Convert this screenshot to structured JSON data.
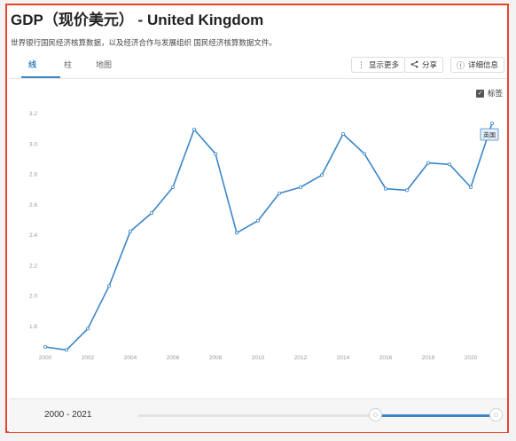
{
  "header": {
    "title": "GDP（现价美元） - United Kingdom",
    "subtitle": "世界银行国民经济核算数据，以及经济合作与发展组织 国民经济核算数据文件。"
  },
  "tabs": [
    {
      "label": "线"
    },
    {
      "label": "柱"
    },
    {
      "label": "地图"
    }
  ],
  "toolbar": {
    "more_label": "显示更多",
    "share_label": "分享",
    "details_label": "详细信息"
  },
  "labels_toggle": {
    "label": "标签",
    "checked": true
  },
  "range": {
    "label": "2000 - 2021"
  },
  "chart_data": {
    "type": "line",
    "title": "",
    "xlabel": "",
    "ylabel": "",
    "x": [
      2000,
      2001,
      2002,
      2003,
      2004,
      2005,
      2006,
      2007,
      2008,
      2009,
      2010,
      2011,
      2012,
      2013,
      2014,
      2015,
      2016,
      2017,
      2018,
      2019,
      2020,
      2021
    ],
    "series": [
      {
        "name": "英国",
        "values": [
          1.66,
          1.64,
          1.78,
          2.06,
          2.42,
          2.54,
          2.71,
          3.09,
          2.93,
          2.41,
          2.49,
          2.67,
          2.71,
          2.79,
          3.06,
          2.93,
          2.7,
          2.69,
          2.87,
          2.86,
          2.71,
          3.13
        ]
      }
    ],
    "y_ticks": [
      "3.2",
      "3.0",
      "2.8",
      "2.6",
      "2.4",
      "2.2",
      "2.0",
      "1.8"
    ],
    "y_tick_values": [
      3.2,
      3.0,
      2.8,
      2.6,
      2.4,
      2.2,
      2.0,
      1.8
    ],
    "x_ticks": [
      "2000",
      "2002",
      "2004",
      "2006",
      "2008",
      "2010",
      "2012",
      "2014",
      "2016",
      "2018",
      "2020"
    ],
    "x_tick_values": [
      2000,
      2002,
      2004,
      2006,
      2008,
      2010,
      2012,
      2014,
      2016,
      2018,
      2020
    ],
    "ylim": [
      1.6,
      3.3
    ],
    "xlim": [
      2000,
      2021
    ],
    "grid": false,
    "legend": "none",
    "line_color": "#3a86c8"
  }
}
